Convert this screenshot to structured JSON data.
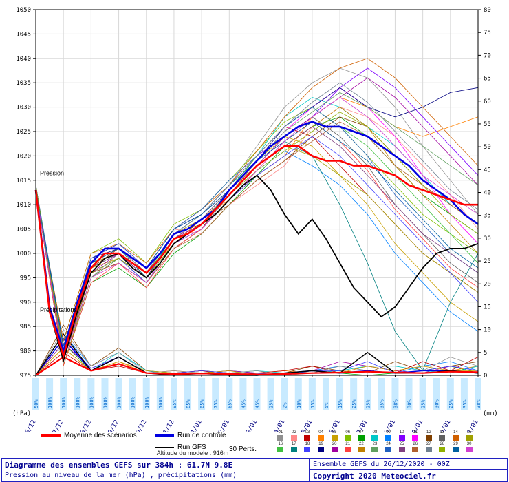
{
  "chart_data": {
    "type": "line",
    "title": "Diagramme des ensembles GEFS sur 384h : 61.7N 9.8E",
    "x_hours_total": 384,
    "dates": [
      "26/12",
      "27/12",
      "28/12",
      "29/12",
      "30/12",
      "31/12",
      "01/01",
      "02/01",
      "03/01",
      "04/01",
      "05/01",
      "06/01",
      "07/01",
      "08/01",
      "09/01",
      "10/01",
      "11/01"
    ],
    "ylim_left": [
      975,
      1050
    ],
    "ytick_left": 5,
    "ylim_right": [
      0,
      80
    ],
    "ytick_right": 5,
    "left_unit": "(hPa)",
    "right_unit": "(mm)",
    "pressure_label": "Pression",
    "precip_label": "Précipitations",
    "pop_labels": [
      "50%",
      "100%",
      "100%",
      "100%",
      "100%",
      "100%",
      "100%",
      "100%",
      "100%",
      "100%",
      "95%",
      "85%",
      "65%",
      "75%",
      "65%",
      "45%",
      "45%",
      "25%",
      "2%",
      "10%",
      "15%",
      "5%",
      "15%",
      "25%",
      "25%",
      "35%",
      "38%",
      "30%",
      "25%",
      "30%",
      "25%",
      "35%",
      "38%"
    ],
    "mean": {
      "label": "Moyenne des scénarios",
      "color": "#ff0000",
      "step_h": 12,
      "pressure": [
        1013,
        988,
        979,
        989,
        997,
        1000,
        1000,
        998,
        996,
        999,
        1003,
        1004,
        1006,
        1009,
        1012,
        1015,
        1018,
        1020,
        1022,
        1022,
        1020,
        1019,
        1019,
        1018,
        1018,
        1017,
        1016,
        1014,
        1013,
        1012,
        1011,
        1010,
        1010
      ],
      "precip_24h": [
        0,
        4,
        1,
        2.5,
        0.5,
        0.3,
        0.4,
        0.3,
        0.2,
        0.3,
        0.5,
        0.6,
        0.8,
        0.6,
        0.5,
        0.8,
        0.7
      ]
    },
    "control": {
      "label": "Run de contrôle",
      "color": "#0000e0",
      "step_h": 12,
      "pressure": [
        1013,
        989,
        980,
        990,
        998,
        1001,
        1001,
        999,
        997,
        1000,
        1004,
        1005,
        1007,
        1009,
        1013,
        1016,
        1019,
        1022,
        1024,
        1026,
        1027,
        1026,
        1026,
        1025,
        1024,
        1022,
        1020,
        1018,
        1015,
        1013,
        1011,
        1008,
        1006
      ],
      "precip_24h": [
        0,
        8,
        1,
        4,
        0.5,
        0.5,
        0.5,
        0.5,
        0,
        0.5,
        1,
        0.5,
        1,
        0.5,
        1,
        1,
        0.5
      ]
    },
    "gfs": {
      "label": "Run GFS",
      "color": "#000000",
      "step_h": 12,
      "pressure": [
        1013,
        988,
        978,
        988,
        996,
        999,
        1000,
        997,
        995,
        998,
        1002,
        1004,
        1006,
        1008,
        1011,
        1014,
        1016,
        1013,
        1008,
        1004,
        1007,
        1003,
        998,
        993,
        990,
        987,
        989,
        993,
        997,
        1000,
        1001,
        1001,
        1002
      ],
      "precip_24h": [
        0,
        9,
        1,
        4,
        0.5,
        0,
        0.5,
        0,
        0,
        0.5,
        1,
        0.5,
        5,
        0.5,
        0.5,
        1,
        0.5
      ]
    },
    "members": {
      "step_h": 24,
      "colors": [
        "#909090",
        "#ff8888",
        "#c00000",
        "#ff8000",
        "#c8a000",
        "#80c000",
        "#00a000",
        "#00c8c8",
        "#0080ff",
        "#8000ff",
        "#ff00ff",
        "#804000",
        "#606060",
        "#d06000",
        "#a0a000",
        "#40c040",
        "#008080",
        "#4040ff",
        "#000080",
        "#a000a0",
        "#ff4040",
        "#c08000",
        "#60a060",
        "#2060c0",
        "#804080",
        "#b06030",
        "#708090",
        "#90b000",
        "#0060a0",
        "#d040d0"
      ],
      "pressure": [
        [
          1013,
          977,
          995,
          1000,
          995,
          1004,
          1008,
          1014,
          1022,
          1030,
          1035,
          1038,
          1036,
          1030,
          1022,
          1015,
          1008
        ],
        [
          1013,
          981,
          999,
          1002,
          997,
          1005,
          1004,
          1010,
          1014,
          1018,
          1026,
          1030,
          1028,
          1024,
          1018,
          1012,
          1005
        ],
        [
          1013,
          978,
          996,
          998,
          994,
          1001,
          1005,
          1013,
          1020,
          1026,
          1024,
          1018,
          1012,
          1006,
          1000,
          996,
          992
        ],
        [
          1013,
          980,
          998,
          1001,
          996,
          1002,
          1007,
          1011,
          1016,
          1020,
          1028,
          1032,
          1030,
          1026,
          1024,
          1026,
          1028
        ],
        [
          1014,
          979,
          997,
          999,
          995,
          1003,
          1006,
          1012,
          1019,
          1024,
          1022,
          1016,
          1010,
          1002,
          996,
          990,
          986
        ],
        [
          1013,
          982,
          1000,
          1003,
          998,
          1006,
          1009,
          1015,
          1021,
          1027,
          1030,
          1026,
          1020,
          1014,
          1008,
          1004,
          1000
        ],
        [
          1013,
          977,
          994,
          997,
          993,
          1000,
          1004,
          1010,
          1016,
          1022,
          1026,
          1028,
          1024,
          1018,
          1012,
          1008,
          1004
        ],
        [
          1014,
          980,
          998,
          1000,
          996,
          1004,
          1007,
          1013,
          1020,
          1028,
          1032,
          1030,
          1026,
          1022,
          1016,
          1010,
          1006
        ],
        [
          1013,
          978,
          995,
          999,
          994,
          1002,
          1005,
          1011,
          1017,
          1021,
          1018,
          1014,
          1008,
          1000,
          994,
          988,
          984
        ],
        [
          1013,
          981,
          999,
          1002,
          997,
          1005,
          1008,
          1014,
          1020,
          1024,
          1028,
          1034,
          1038,
          1034,
          1028,
          1022,
          1016
        ],
        [
          1013,
          979,
          996,
          999,
          995,
          1003,
          1007,
          1013,
          1019,
          1025,
          1030,
          1034,
          1030,
          1024,
          1016,
          1008,
          1002
        ],
        [
          1014,
          980,
          997,
          1001,
          996,
          1004,
          1006,
          1010,
          1015,
          1019,
          1024,
          1028,
          1026,
          1020,
          1014,
          1010,
          1006
        ],
        [
          1013,
          978,
          996,
          998,
          994,
          1001,
          1005,
          1012,
          1018,
          1024,
          1028,
          1024,
          1018,
          1010,
          1004,
          998,
          994
        ],
        [
          1013,
          982,
          1000,
          1002,
          998,
          1005,
          1009,
          1014,
          1021,
          1028,
          1034,
          1038,
          1040,
          1036,
          1030,
          1024,
          1018
        ],
        [
          1013,
          977,
          995,
          999,
          994,
          1002,
          1006,
          1012,
          1018,
          1022,
          1020,
          1016,
          1012,
          1006,
          1000,
          996,
          992
        ],
        [
          1014,
          979,
          997,
          1000,
          996,
          1003,
          1007,
          1013,
          1020,
          1026,
          1030,
          1026,
          1022,
          1016,
          1010,
          1004,
          998
        ],
        [
          1013,
          980,
          998,
          1001,
          995,
          1004,
          1008,
          1014,
          1019,
          1023,
          1020,
          1010,
          998,
          984,
          976,
          990,
          1000
        ],
        [
          1013,
          978,
          996,
          999,
          994,
          1002,
          1005,
          1011,
          1016,
          1020,
          1024,
          1020,
          1014,
          1008,
          1002,
          996,
          990
        ],
        [
          1013,
          981,
          999,
          1001,
          997,
          1005,
          1008,
          1013,
          1019,
          1026,
          1030,
          1034,
          1030,
          1028,
          1030,
          1033,
          1034
        ],
        [
          1014,
          979,
          996,
          1000,
          995,
          1003,
          1006,
          1012,
          1018,
          1024,
          1028,
          1032,
          1036,
          1032,
          1026,
          1020,
          1014
        ],
        [
          1013,
          977,
          994,
          998,
          993,
          1001,
          1005,
          1011,
          1017,
          1023,
          1027,
          1023,
          1017,
          1009,
          1003,
          997,
          993
        ],
        [
          1013,
          980,
          998,
          1000,
          996,
          1004,
          1007,
          1012,
          1018,
          1022,
          1026,
          1030,
          1026,
          1018,
          1012,
          1006,
          1000
        ],
        [
          1013,
          978,
          995,
          999,
          995,
          1002,
          1006,
          1013,
          1019,
          1025,
          1029,
          1033,
          1030,
          1026,
          1022,
          1018,
          1014
        ],
        [
          1014,
          981,
          999,
          1002,
          997,
          1005,
          1009,
          1015,
          1020,
          1026,
          1030,
          1026,
          1020,
          1012,
          1006,
          1000,
          996
        ],
        [
          1013,
          979,
          997,
          1000,
          995,
          1003,
          1007,
          1013,
          1018,
          1022,
          1026,
          1022,
          1016,
          1010,
          1004,
          1000,
          996
        ],
        [
          1013,
          978,
          996,
          998,
          994,
          1001,
          1004,
          1010,
          1015,
          1019,
          1023,
          1027,
          1024,
          1018,
          1014,
          1010,
          1006
        ],
        [
          1013,
          980,
          998,
          1001,
          996,
          1004,
          1008,
          1014,
          1020,
          1026,
          1031,
          1035,
          1031,
          1025,
          1019,
          1013,
          1009
        ],
        [
          1014,
          979,
          996,
          999,
          995,
          1002,
          1006,
          1012,
          1017,
          1021,
          1025,
          1029,
          1026,
          1020,
          1014,
          1008,
          1004
        ],
        [
          1013,
          981,
          998,
          1001,
          997,
          1005,
          1008,
          1013,
          1019,
          1023,
          1027,
          1023,
          1019,
          1013,
          1007,
          1001,
          997
        ],
        [
          1013,
          978,
          995,
          998,
          994,
          1002,
          1005,
          1011,
          1017,
          1023,
          1028,
          1032,
          1028,
          1022,
          1016,
          1012,
          1008
        ]
      ]
    },
    "precip_members": {
      "step_h": 24,
      "series": [
        {
          "color": "#00a000",
          "values": [
            0,
            7,
            1,
            4,
            0.5,
            0.5,
            1,
            0.5,
            0,
            0.5,
            1,
            0.5,
            0,
            0.5,
            1,
            2,
            0.5
          ]
        },
        {
          "color": "#0080ff",
          "values": [
            0,
            9,
            2,
            5,
            1,
            0,
            0.5,
            1,
            0.5,
            0,
            1,
            2,
            1,
            0.5,
            2,
            3,
            1
          ]
        },
        {
          "color": "#ff8000",
          "values": [
            0,
            6,
            1,
            3,
            0.5,
            1,
            0.5,
            0,
            0.5,
            1,
            0.5,
            0.5,
            2,
            1,
            0.5,
            1,
            2
          ]
        },
        {
          "color": "#804000",
          "values": [
            0,
            11,
            2,
            6,
            1,
            0.5,
            1,
            0.5,
            0,
            0.5,
            2,
            1,
            0.5,
            3,
            1,
            2,
            3
          ]
        },
        {
          "color": "#a000a0",
          "values": [
            0,
            7,
            1.5,
            4,
            0.5,
            0,
            0.5,
            1,
            0.5,
            0.5,
            1,
            3,
            2,
            1,
            0.5,
            2,
            1
          ]
        },
        {
          "color": "#00c8c8",
          "values": [
            0,
            8,
            1,
            5,
            1,
            0.5,
            0,
            0.5,
            1,
            0.5,
            0.5,
            1,
            2,
            2,
            1,
            0.5,
            2
          ]
        },
        {
          "color": "#c00000",
          "values": [
            0,
            5,
            1,
            2,
            0.5,
            0.5,
            1,
            0,
            0.5,
            1,
            2,
            0.5,
            1,
            0.5,
            3,
            1,
            4
          ]
        },
        {
          "color": "#909090",
          "values": [
            0,
            10,
            2,
            5,
            0.5,
            1,
            0.5,
            0.5,
            1,
            0,
            0.5,
            2,
            1,
            0.5,
            1,
            4,
            2
          ]
        },
        {
          "color": "#c8a000",
          "values": [
            0,
            6,
            1,
            3,
            1,
            0.5,
            0.5,
            1,
            0,
            0.5,
            1,
            0.5,
            2,
            1,
            2,
            1,
            1
          ]
        },
        {
          "color": "#4040ff",
          "values": [
            0,
            8,
            1.5,
            4,
            0.5,
            0.5,
            1,
            0.5,
            0.5,
            0,
            1,
            1,
            3,
            0.5,
            1,
            2,
            1
          ]
        }
      ]
    }
  },
  "legend": {
    "perts_label": "30 Perts.",
    "member_numbers": [
      "01",
      "02",
      "03",
      "04",
      "05",
      "06",
      "07",
      "08",
      "09",
      "10",
      "11",
      "12",
      "13",
      "14",
      "15",
      "16",
      "17",
      "18",
      "19",
      "20",
      "21",
      "22",
      "23",
      "24",
      "25",
      "26",
      "27",
      "28",
      "29",
      "30"
    ]
  },
  "footer": {
    "altitude": "Altitude du modele : 916m",
    "title": "Diagramme des ensembles GEFS sur 384h : 61.7N 9.8E",
    "subtitle": "Pression au niveau de la mer (hPa) , précipitations (mm)",
    "run_info": "Ensemble GEFS du 26/12/2020 - 00Z",
    "copyright": "Copyright 2020 Meteociel.fr"
  }
}
